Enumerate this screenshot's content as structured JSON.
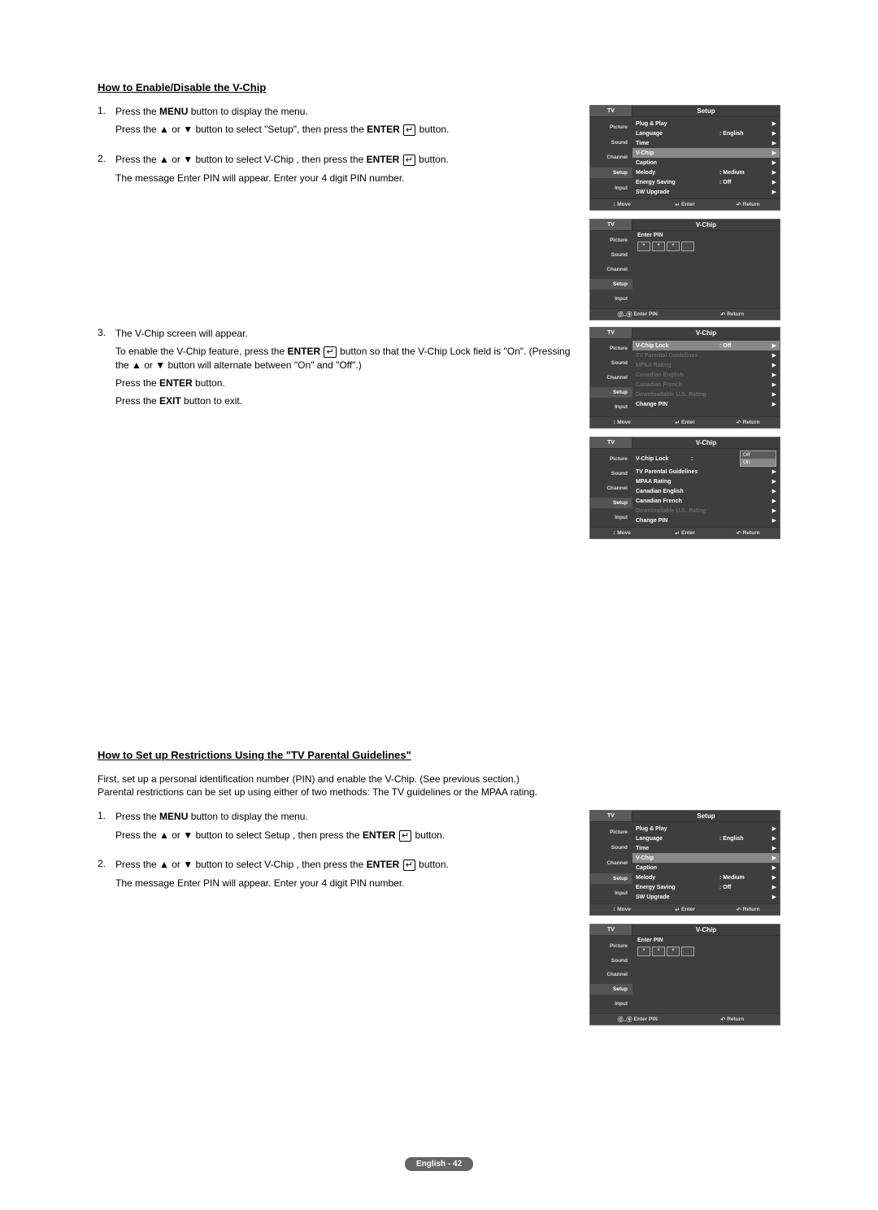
{
  "section1": {
    "heading": "How to Enable/Disable the V-Chip",
    "steps": [
      {
        "num": "1.",
        "lines": [
          "Press the <b>MENU</b> button to display the menu.",
          "Press the ▲ or ▼ button to select \"Setup\", then press the <b>ENTER</b> <span class='enter-icon'></span> button."
        ]
      },
      {
        "num": "2.",
        "lines": [
          "Press the ▲ or ▼ button to select  V-Chip , then press the <b>ENTER</b> <span class='enter-icon'></span> button.",
          "The message  Enter PIN  will appear. Enter your 4 digit PIN number."
        ]
      },
      {
        "num": "3.",
        "lines": [
          "The  V-Chip  screen will appear.",
          "To enable the V-Chip feature, press the <b>ENTER</b> <span class='enter-icon'></span> button so that the  V-Chip Lock  field is \"On\". (Pressing the ▲ or ▼ button will alternate between \"On\" and \"Off\".)",
          "Press the <b>ENTER</b> button.",
          "Press the <b>EXIT</b> button to exit."
        ]
      }
    ]
  },
  "section2": {
    "heading": "How to Set up Restrictions Using the \"TV Parental Guidelines\"",
    "intro": "First, set up a personal identification number (PIN) and enable the V-Chip. (See previous section.)\nParental restrictions can be set up using either of two methods: The TV guidelines or the MPAA rating.",
    "steps": [
      {
        "num": "1.",
        "lines": [
          "Press the <b>MENU</b> button to display the menu.",
          "Press the ▲ or ▼ button to select  Setup , then press the <b>ENTER</b> <span class='enter-icon'></span> button."
        ]
      },
      {
        "num": "2.",
        "lines": [
          "Press the ▲ or ▼ button to select  V-Chip , then press the <b>ENTER</b> <span class='enter-icon'></span> button.",
          "The message  Enter PIN  will appear. Enter your 4 digit PIN number."
        ]
      }
    ]
  },
  "side_items": [
    "Picture",
    "Sound",
    "Channel",
    "Setup",
    "Input"
  ],
  "setup_menu": {
    "title": "Setup",
    "rows": [
      {
        "lbl": "Plug & Play",
        "val": "",
        "sel": false
      },
      {
        "lbl": "Language",
        "val": ": English",
        "sel": false
      },
      {
        "lbl": "Time",
        "val": "",
        "sel": false
      },
      {
        "lbl": "V-Chip",
        "val": "",
        "sel": true
      },
      {
        "lbl": "Caption",
        "val": "",
        "sel": false
      },
      {
        "lbl": "Melody",
        "val": ": Medium",
        "sel": false
      },
      {
        "lbl": "Energy Saving",
        "val": ": Off",
        "sel": false
      },
      {
        "lbl": "SW Upgrade",
        "val": "",
        "sel": false
      }
    ],
    "footer": [
      {
        "icon": "↕",
        "t": "Move"
      },
      {
        "icon": "↵",
        "t": "Enter"
      },
      {
        "icon": "↶",
        "t": "Return"
      }
    ]
  },
  "pin_menu": {
    "title": "V-Chip",
    "label": "Enter PIN",
    "dots": [
      "*",
      "*",
      "*",
      ""
    ],
    "footer": [
      {
        "icon": "⓪..⑨",
        "t": "Enter PIN"
      },
      {
        "icon": "↶",
        "t": "Return"
      }
    ]
  },
  "vchip_menu1": {
    "title": "V-Chip",
    "rows": [
      {
        "lbl": "V-Chip Lock",
        "val": ": Off",
        "sel": true,
        "dim": false
      },
      {
        "lbl": "TV Parental Guidelines",
        "val": "",
        "dim": true
      },
      {
        "lbl": "MPAA Rating",
        "val": "",
        "dim": true
      },
      {
        "lbl": "Canadian English",
        "val": "",
        "dim": true
      },
      {
        "lbl": "Canadian French",
        "val": "",
        "dim": true
      },
      {
        "lbl": "Downloadable U.S. Rating",
        "val": "",
        "dim": true
      },
      {
        "lbl": "Change PIN",
        "val": "",
        "dim": false
      }
    ],
    "footer": [
      {
        "icon": "↕",
        "t": "Move"
      },
      {
        "icon": "↵",
        "t": "Enter"
      },
      {
        "icon": "↶",
        "t": "Return"
      }
    ]
  },
  "vchip_menu2": {
    "title": "V-Chip",
    "rows": [
      {
        "lbl": "V-Chip Lock",
        "val": ":",
        "dropdown": [
          "Off",
          "On"
        ]
      },
      {
        "lbl": "TV Parental Guidelines",
        "val": ""
      },
      {
        "lbl": "MPAA Rating",
        "val": ""
      },
      {
        "lbl": "Canadian English",
        "val": ""
      },
      {
        "lbl": "Canadian French",
        "val": ""
      },
      {
        "lbl": "Downloadable U.S. Rating",
        "val": "",
        "dim": true
      },
      {
        "lbl": "Change PIN",
        "val": ""
      }
    ],
    "footer": [
      {
        "icon": "↕",
        "t": "Move"
      },
      {
        "icon": "↵",
        "t": "Enter"
      },
      {
        "icon": "↶",
        "t": "Return"
      }
    ]
  },
  "page_footer": "English - 42",
  "colors": {
    "panel_bg": "#3e3e3e",
    "text": "#000",
    "page": "#fff"
  }
}
